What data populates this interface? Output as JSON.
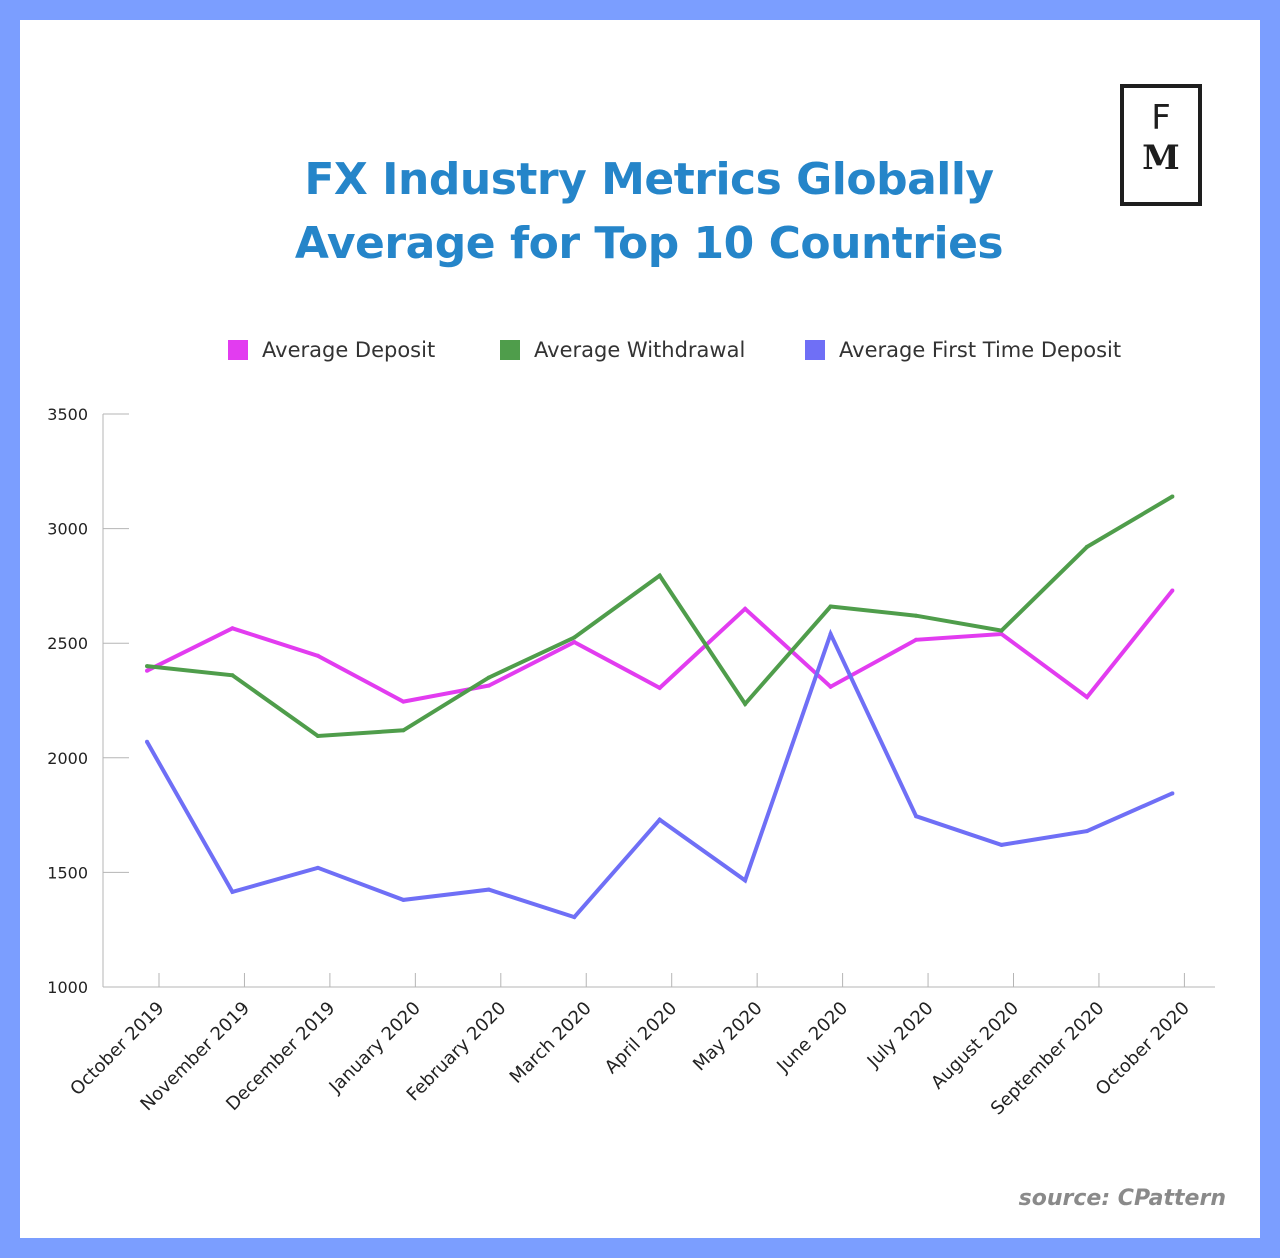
{
  "colors": {
    "background": "#7b9eff",
    "title": "#2585c9",
    "deposit": "#e23cf0",
    "withdrawal": "#4f9d4b",
    "first_time_deposit": "#6f6ff6"
  },
  "logo": {
    "top_letter": "F",
    "bottom_letter": "M"
  },
  "source": "source: CPattern",
  "chart_data": {
    "type": "line",
    "title_lines": [
      "FX Industry Metrics Globally",
      "Average for Top 10 Countries"
    ],
    "categories": [
      "October 2019",
      "November 2019",
      "December 2019",
      "January 2020",
      "February 2020",
      "March 2020",
      "April 2020",
      "May 2020",
      "June 2020",
      "July 2020",
      "August 2020",
      "September 2020",
      "October 2020"
    ],
    "series": [
      {
        "name": "Average Deposit",
        "color": "#e23cf0",
        "values": [
          2380,
          2565,
          2445,
          2245,
          2315,
          2505,
          2305,
          2650,
          2310,
          2515,
          2540,
          2265,
          2730
        ]
      },
      {
        "name": "Average Withdrawal",
        "color": "#4f9d4b",
        "values": [
          2400,
          2360,
          2095,
          2120,
          2350,
          2525,
          2795,
          2235,
          2660,
          2620,
          2555,
          2920,
          3140
        ]
      },
      {
        "name": "Average First Time Deposit",
        "color": "#6f6ff6",
        "values": [
          2070,
          1415,
          1520,
          1380,
          1425,
          1305,
          1730,
          1465,
          2540,
          1745,
          1620,
          1680,
          1845
        ]
      }
    ],
    "yticks": [
      1000,
      1500,
      2000,
      2500,
      3000,
      3500
    ],
    "ylim": [
      1000,
      3500
    ],
    "xlabel": "",
    "ylabel": "",
    "grid": false,
    "legend_position": "top-center"
  }
}
